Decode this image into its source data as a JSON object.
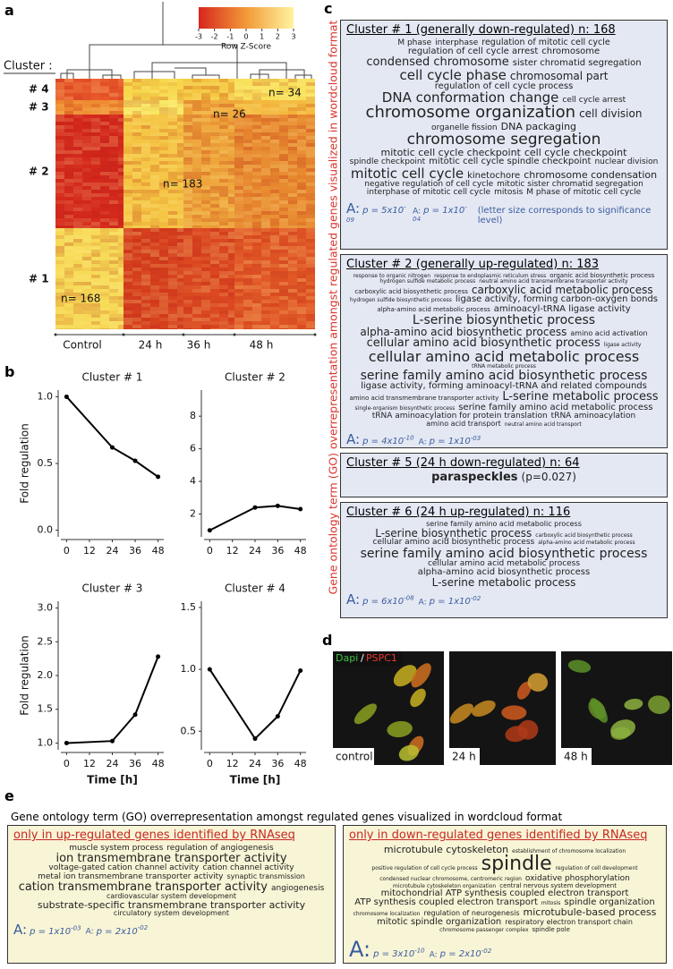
{
  "panel_labels": [
    "a",
    "b",
    "c",
    "d",
    "e"
  ],
  "heatmap": {
    "colorkey_ticks": [
      -3,
      -2,
      -1,
      0,
      1,
      2,
      3
    ],
    "colorkey_title": "Row Z-Score",
    "cluster_heading": "Cluster :",
    "clusters": [
      "# 4",
      "# 3",
      "# 2",
      "# 1"
    ],
    "counts": [
      "n= 34",
      "n= 26",
      "n= 183",
      "n= 168"
    ],
    "columns": [
      "Control",
      "24 h",
      "36 h",
      "48 h"
    ]
  },
  "chart_data": [
    {
      "type": "line",
      "title": "Cluster # 1",
      "x": [
        0,
        24,
        36,
        48
      ],
      "values": [
        1.0,
        0.62,
        0.52,
        0.4
      ],
      "color": "#000000",
      "xlim": [
        -3,
        51
      ],
      "xticks": [
        0,
        12,
        24,
        36,
        48
      ],
      "ylim": [
        -0.05,
        1.05
      ],
      "yticks": [
        {
          "value": 0,
          "label": "0.0"
        },
        {
          "value": 0.5,
          "label": "0.5"
        },
        {
          "value": 1,
          "label": "1.0"
        }
      ],
      "ylabel": "Fold regulation"
    },
    {
      "type": "line",
      "title": "Cluster # 2",
      "x": [
        0,
        24,
        36,
        48
      ],
      "values": [
        1.0,
        2.4,
        2.5,
        2.3
      ],
      "color": "#000000",
      "xlim": [
        -3,
        51
      ],
      "xticks": [
        0,
        12,
        24,
        36,
        48
      ],
      "ylim": [
        0.6,
        9.6
      ],
      "yticks": [
        2,
        4,
        6,
        8
      ]
    },
    {
      "type": "line",
      "title": "Cluster # 3",
      "x": [
        0,
        24,
        36,
        48
      ],
      "values": [
        1.0,
        1.03,
        1.42,
        2.28
      ],
      "color": "#000000",
      "xlim": [
        -3,
        51
      ],
      "xticks": [
        0,
        12,
        24,
        36,
        48
      ],
      "ylim": [
        0.9,
        3.1
      ],
      "yticks": [
        {
          "value": 1,
          "label": "1.0"
        },
        {
          "value": 1.5,
          "label": "1.5"
        },
        {
          "value": 2,
          "label": "2.0"
        },
        {
          "value": 2.5,
          "label": "2.5"
        },
        {
          "value": 3,
          "label": "3.0"
        }
      ],
      "ylabel": "Fold regulation",
      "xlabel": "Time [h]"
    },
    {
      "type": "line",
      "title": "Cluster # 4",
      "x": [
        0,
        24,
        36,
        48
      ],
      "values": [
        1.0,
        0.44,
        0.62,
        0.99
      ],
      "color": "#000000",
      "xlim": [
        -3,
        51
      ],
      "xticks": [
        0,
        12,
        24,
        36,
        48
      ],
      "ylim": [
        0.35,
        1.55
      ],
      "yticks": [
        {
          "value": 0.5,
          "label": "0.5"
        },
        {
          "value": 1,
          "label": "1.0"
        },
        {
          "value": 1.5,
          "label": "1.5"
        }
      ],
      "xlabel": "Time [h]"
    }
  ],
  "go_clusters": {
    "side_title": "Gene ontology term (GO) overrepresentation amongst regulated genes visualized in wordcloud format",
    "boxes": [
      {
        "title": "Cluster # 1 (generally down-regulated) n: 168",
        "words": [
          "M phase",
          "interphase",
          "regulation of mitotic cell cycle",
          "regulation of cell cycle arrest",
          "chromosome",
          "condensed chromosome",
          "sister chromatid segregation",
          "cell cycle phase",
          "chromosomal part",
          "regulation of cell cycle process",
          "DNA conformation change",
          "cell cycle arrest",
          "chromosome organization",
          "cell division",
          "organelle fission",
          "DNA packaging",
          "chromosome segregation",
          "mitotic cell cycle checkpoint",
          "cell cycle checkpoint",
          "spindle checkpoint",
          "mitotic cell cycle spindle checkpoint",
          "nuclear division",
          "mitotic cell cycle",
          "kinetochore",
          "chromosome condensation",
          "negative regulation of cell cycle",
          "mitotic sister chromatid segregation",
          "interphase of mitotic cell cycle",
          "mitosis",
          "M phase of mitotic cell cycle"
        ],
        "stats": {
          "big": {
            "letter": "A:",
            "text": "p = 5x10",
            "exponent": "-09"
          },
          "small": {
            "letter": "A:",
            "text": "p = 1x10",
            "exponent": "-04"
          },
          "note": "(letter size corresponds to significance level)"
        }
      },
      {
        "title": "Cluster # 2 (generally up-regulated) n: 183",
        "words": [
          "response to organic nitrogen",
          "response to endoplasmic reticulum stress",
          "organic acid biosynthetic process",
          "hydrogen sulfide metabolic process",
          "neutral amino acid transmembrane transporter activity",
          "carboxylic acid biosynthetic process",
          "carboxylic acid metabolic process",
          "hydrogen sulfide biosynthetic process",
          "ligase activity, forming carbon-oxygen bonds",
          "alpha-amino acid metabolic process",
          "aminoacyl-tRNA ligase activity",
          "L-serine biosynthetic process",
          "alpha-amino acid biosynthetic process",
          "amino acid activation",
          "cellular amino acid biosynthetic process",
          "ligase activity",
          "cellular amino acid metabolic process",
          "tRNA metabolic process",
          "serine family amino acid biosynthetic process",
          "ligase activity, forming aminoacyl-tRNA and related compounds",
          "amino acid transmembrane transporter activity",
          "L-serine metabolic process",
          "single-organism biosynthetic process",
          "serine family amino acid metabolic process",
          "tRNA aminoacylation for protein translation",
          "tRNA aminoacylation",
          "amino acid transport",
          "neutral amino acid transport"
        ],
        "stats": {
          "big": {
            "letter": "A:",
            "text": "p = 4x10",
            "exponent": "-10"
          },
          "small": {
            "letter": "A:",
            "text": "p = 1x10",
            "exponent": "-03"
          }
        }
      },
      {
        "title": "Cluster # 5 (24 h down-regulated) n: 64",
        "words": [
          "paraspeckles"
        ],
        "p_text": "(p=0.027)"
      },
      {
        "title": "Cluster # 6 (24 h up-regulated) n: 116",
        "words": [
          "serine family amino acid metabolic process",
          "L-serine biosynthetic process",
          "carboxylic acid biosynthetic process",
          "cellular amino acid biosynthetic process",
          "alpha-amino acid metabolic process",
          "serine family amino acid biosynthetic process",
          "cellular amino acid metabolic process",
          "alpha-amino acid biosynthetic process",
          "L-serine metabolic process"
        ],
        "stats": {
          "big": {
            "letter": "A:",
            "text": "p = 6x10",
            "exponent": "-08"
          },
          "small": {
            "letter": "A:",
            "text": "p = 1x10",
            "exponent": "-02"
          }
        }
      }
    ]
  },
  "microscopy": {
    "stain_1": "Dapi",
    "separator": "/",
    "stain_2": "PSPC1",
    "images": [
      "control",
      "24 h",
      "48 h"
    ]
  },
  "wordclouds_e": {
    "title": "Gene ontology term (GO) overrepresentation amongst regulated genes visualized in wordcloud format",
    "boxes": [
      {
        "title": "only in up-regulated genes identified by RNAseq",
        "words": [
          "muscle system process",
          "regulation of angiogenesis",
          "ion transmembrane transporter activity",
          "voltage-gated cation channel activity",
          "cation channel activity",
          "metal ion transmembrane transporter activity",
          "synaptic transmission",
          "cation transmembrane transporter activity",
          "angiogenesis",
          "cardiovascular system development",
          "substrate-specific transmembrane transporter activity",
          "circulatory system development"
        ],
        "stats": {
          "big": {
            "letter": "A:",
            "text": "p = 1x10",
            "exponent": "-03"
          },
          "small": {
            "letter": "A:",
            "text": "p = 2x10",
            "exponent": "-02"
          }
        }
      },
      {
        "title": "only in down-regulated genes identified by RNAseq",
        "words": [
          "microtubule cytoskeleton",
          "establishment of chromosome localization",
          "positive regulation of cell cycle process",
          "spindle",
          "regulation of cell development",
          "condensed nuclear chromosome, centromeric region",
          "oxidative phosphorylation",
          "microtubule cytoskeleton organization",
          "central nervous system development",
          "mitochondrial ATP synthesis coupled electron transport",
          "ATP synthesis coupled electron transport",
          "mitosis",
          "spindle organization",
          "chromosome localization",
          "regulation of neurogenesis",
          "microtubule-based process",
          "mitotic spindle organization",
          "respiratory electron transport chain",
          "chromosome passenger complex",
          "spindle pole"
        ],
        "stats": {
          "big": {
            "letter": "A:",
            "text": "p = 3x10",
            "exponent": "-10"
          },
          "small": {
            "letter": "A:",
            "text": "p = 2x10",
            "exponent": "-02"
          }
        }
      }
    ]
  }
}
